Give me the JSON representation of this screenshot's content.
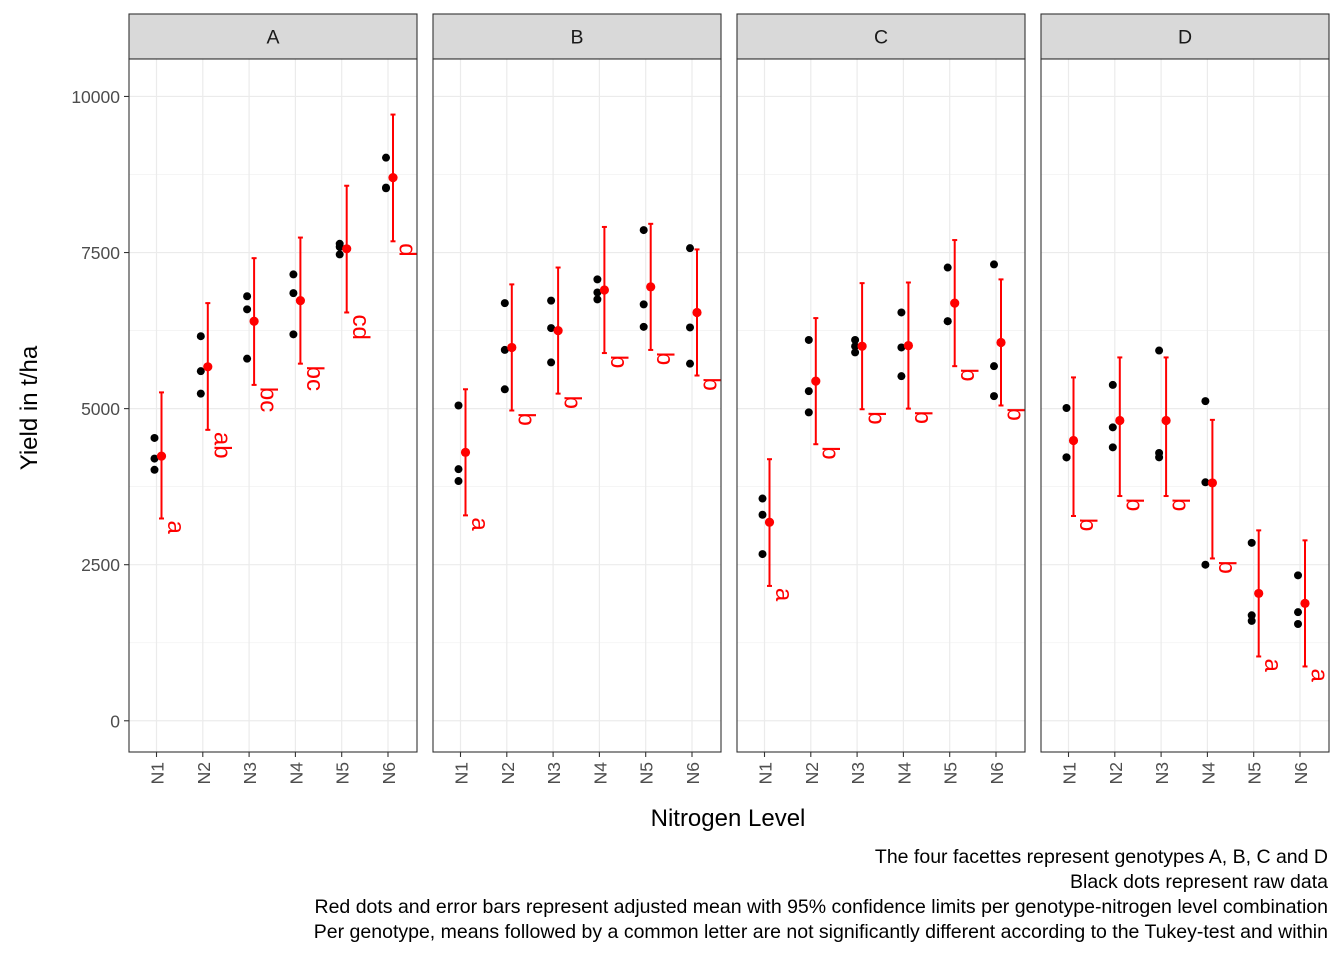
{
  "chart_data": {
    "type": "scatter",
    "ylabel": "Yield in t/ha",
    "xlabel": "Nitrogen Level",
    "ylim": [
      -500,
      10600
    ],
    "yticks": [
      0,
      2500,
      5000,
      7500,
      10000
    ],
    "categories": [
      "N1",
      "N2",
      "N3",
      "N4",
      "N5",
      "N6"
    ],
    "grid": true,
    "colors": {
      "raw": "#000000",
      "mean": "#ff0000",
      "strip": "#d9d9d9"
    },
    "facets": [
      {
        "name": "A",
        "raw": [
          [
            4530,
            4200,
            4020
          ],
          [
            6160,
            5600,
            5240
          ],
          [
            6800,
            6590,
            5800
          ],
          [
            7150,
            6850,
            6190
          ],
          [
            7640,
            7590,
            7470
          ],
          [
            9020,
            8540,
            8530
          ]
        ],
        "mean": [
          4240,
          5670,
          6400,
          6730,
          7560,
          8700
        ],
        "lower": [
          3240,
          4660,
          5380,
          5720,
          6540,
          7680
        ],
        "upper": [
          5260,
          6690,
          7410,
          7740,
          8570,
          9710
        ],
        "letters": [
          "a",
          "ab",
          "bc",
          "bc",
          "cd",
          "d"
        ]
      },
      {
        "name": "B",
        "raw": [
          [
            5050,
            4030,
            3840
          ],
          [
            6690,
            5940,
            5310
          ],
          [
            6730,
            6290,
            5740
          ],
          [
            7070,
            6860,
            6750
          ],
          [
            7860,
            6670,
            6310
          ],
          [
            7570,
            6300,
            5720
          ]
        ],
        "mean": [
          4300,
          5980,
          6250,
          6900,
          6950,
          6540
        ],
        "lower": [
          3290,
          4970,
          5240,
          5890,
          5940,
          5530
        ],
        "upper": [
          5310,
          6990,
          7260,
          7910,
          7960,
          7550
        ],
        "letters": [
          "a",
          "b",
          "b",
          "b",
          "b",
          "b"
        ]
      },
      {
        "name": "C",
        "raw": [
          [
            3560,
            3300,
            2670
          ],
          [
            6100,
            5280,
            4940
          ],
          [
            6100,
            6000,
            5900
          ],
          [
            6540,
            5980,
            5520
          ],
          [
            7260,
            6400,
            6400
          ],
          [
            7310,
            5680,
            5200
          ]
        ],
        "mean": [
          3180,
          5440,
          6000,
          6010,
          6690,
          6060
        ],
        "lower": [
          2160,
          4430,
          4990,
          5000,
          5680,
          5050
        ],
        "upper": [
          4190,
          6450,
          7010,
          7020,
          7700,
          7070
        ],
        "letters": [
          "a",
          "b",
          "b",
          "b",
          "b",
          "b"
        ]
      },
      {
        "name": "D",
        "raw": [
          [
            5010,
            4220,
            4220
          ],
          [
            5380,
            4700,
            4380
          ],
          [
            5930,
            4290,
            4220
          ],
          [
            5120,
            3820,
            2500
          ],
          [
            2850,
            1690,
            1600
          ],
          [
            2330,
            1740,
            1550
          ]
        ],
        "mean": [
          4490,
          4810,
          4810,
          3810,
          2040,
          1880
        ],
        "lower": [
          3280,
          3600,
          3600,
          2600,
          1030,
          870
        ],
        "upper": [
          5500,
          5820,
          5820,
          4820,
          3050,
          2890
        ],
        "letters": [
          "b",
          "b",
          "b",
          "b",
          "a",
          "a"
        ]
      }
    ]
  },
  "caption": {
    "line1": "The four facettes represent genotypes A, B, C and D",
    "line2": "Black dots represent raw data",
    "line3": "Red dots and error bars represent adjusted mean with 95% confidence limits per genotype-nitrogen level combination",
    "line4": "Per genotype, means followed by a common letter are not significantly different according to the Tukey-test and within"
  }
}
